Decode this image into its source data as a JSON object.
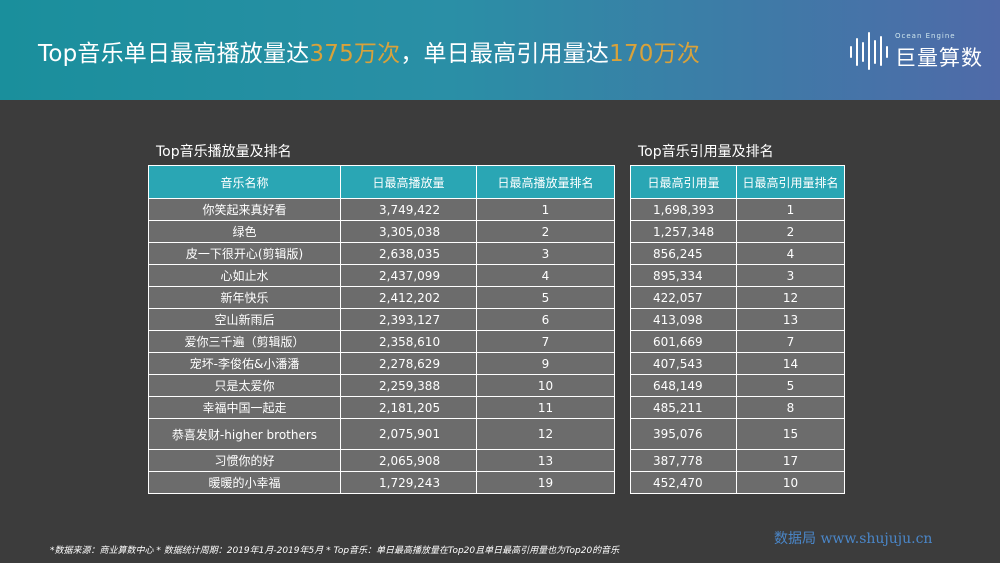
{
  "header": {
    "title_part1": "Top音乐单日最高播放量达",
    "title_highlight1": "375万次",
    "title_part2": "，单日最高引用量达",
    "title_highlight2": "170万次"
  },
  "logo": {
    "en_text": "Ocean Engine",
    "cn_text": "巨量算数"
  },
  "colors": {
    "header_start": "#1a8f9c",
    "header_end": "#4f6aa8",
    "highlight": "#d9a23a",
    "table_header": "#2aa6b4",
    "cell_bg": "#6c6c6c",
    "page_bg": "#3c3c3c"
  },
  "play_table": {
    "title": "Top音乐播放量及排名",
    "headers": [
      "音乐名称",
      "日最高播放量",
      "日最高播放量排名"
    ],
    "rows": [
      [
        "你笑起来真好看",
        "3,749,422",
        "1"
      ],
      [
        "绿色",
        "3,305,038",
        "2"
      ],
      [
        "皮一下很开心(剪辑版)",
        "2,638,035",
        "3"
      ],
      [
        "心如止水",
        "2,437,099",
        "4"
      ],
      [
        "新年快乐",
        "2,412,202",
        "5"
      ],
      [
        "空山新雨后",
        "2,393,127",
        "6"
      ],
      [
        "爱你三千遍（剪辑版）",
        "2,358,610",
        "7"
      ],
      [
        "宠坏-李俊佑&小潘潘",
        "2,278,629",
        "9"
      ],
      [
        "只是太爱你",
        "2,259,388",
        "10"
      ],
      [
        "幸福中国一起走",
        "2,181,205",
        "11"
      ],
      [
        "恭喜发财-higher brothers",
        "2,075,901",
        "12"
      ],
      [
        "习惯你的好",
        "2,065,908",
        "13"
      ],
      [
        "暖暖的小幸福",
        "1,729,243",
        "19"
      ]
    ]
  },
  "cite_table": {
    "title": "Top音乐引用量及排名",
    "headers": [
      "日最高引用量",
      "日最高引用量排名"
    ],
    "rows": [
      [
        "1,698,393",
        "1"
      ],
      [
        "1,257,348",
        "2"
      ],
      [
        "856,245",
        "4"
      ],
      [
        "895,334",
        "3"
      ],
      [
        "422,057",
        "12"
      ],
      [
        "413,098",
        "13"
      ],
      [
        "601,669",
        "7"
      ],
      [
        "407,543",
        "14"
      ],
      [
        "648,149",
        "5"
      ],
      [
        "485,211",
        "8"
      ],
      [
        "395,076",
        "15"
      ],
      [
        "387,778",
        "17"
      ],
      [
        "452,470",
        "10"
      ]
    ]
  },
  "footnote": "*数据来源：商业算数中心 * 数据统计周期：2019年1月-2019年5月 * Top音乐：单日最高播放量在Top20且单日最高引用量也为Top20的音乐",
  "watermark": "数据局 www.shujuju.cn"
}
